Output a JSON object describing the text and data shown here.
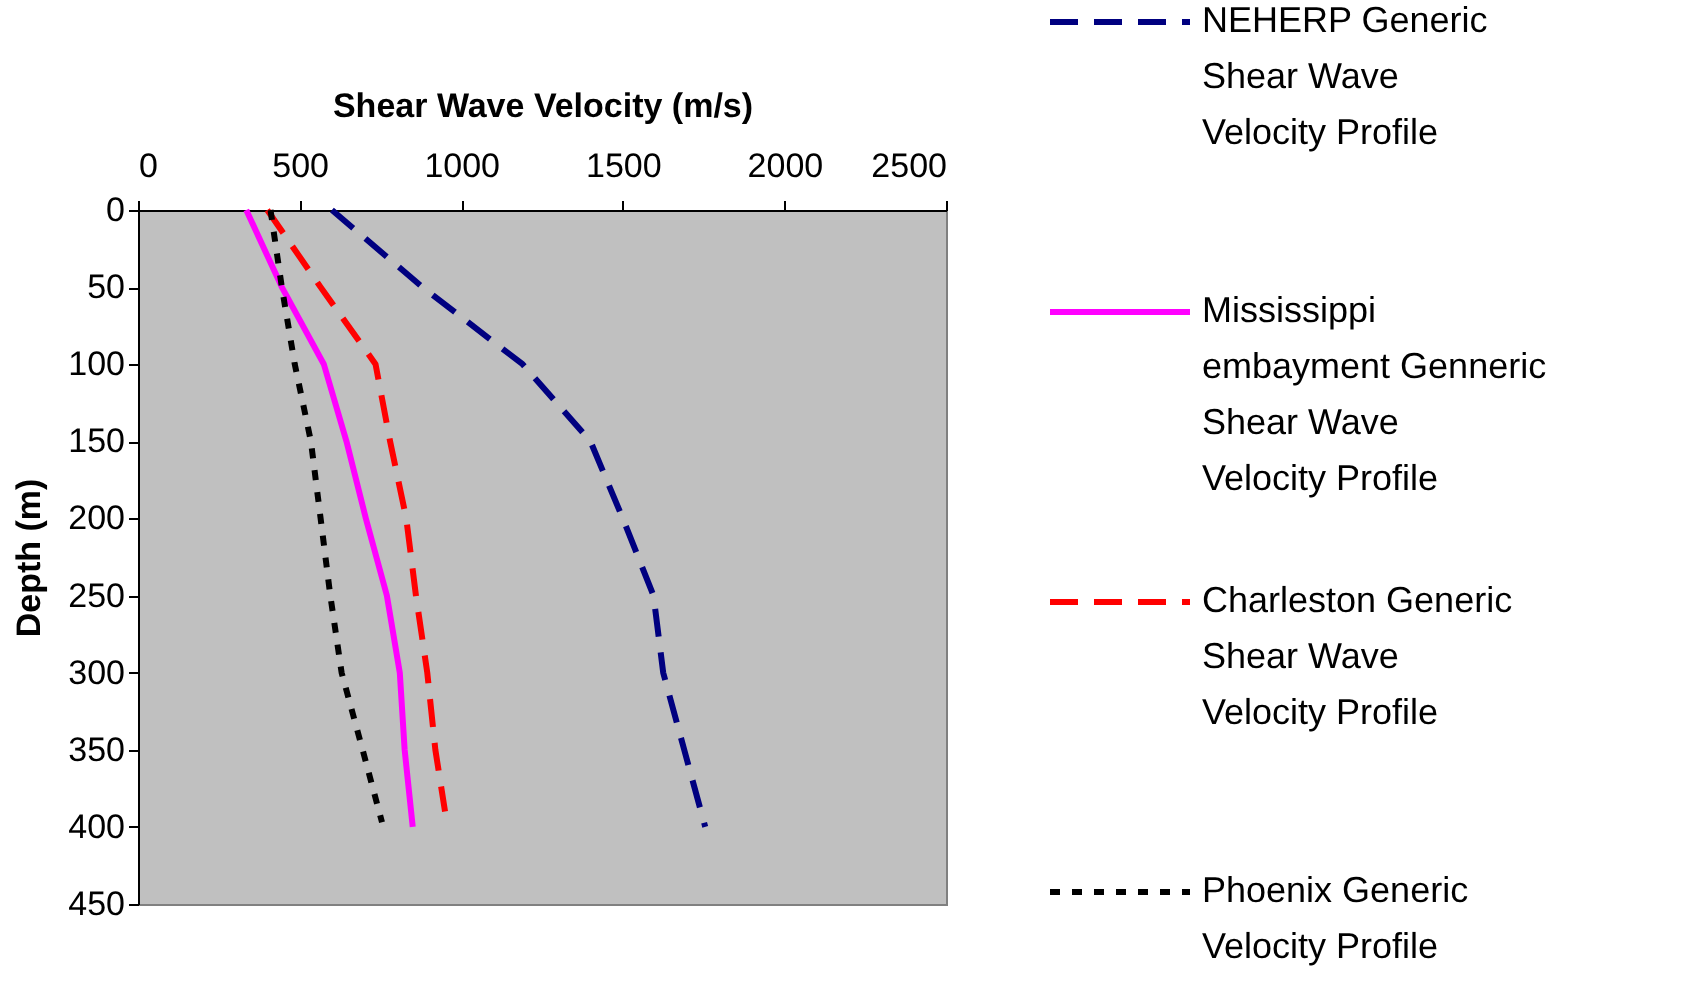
{
  "chart_data": {
    "type": "line",
    "xlabel": "Shear Wave Velocity (m/s)",
    "ylabel": "Depth (m)",
    "xlim": [
      0,
      2500
    ],
    "xticks": [
      0,
      500,
      1000,
      1500,
      2000,
      2500
    ],
    "ylim": [
      450,
      0
    ],
    "yticks": [
      0,
      50,
      100,
      150,
      200,
      250,
      300,
      350,
      400,
      450
    ],
    "grid": false,
    "legend": "right",
    "marker": "none",
    "series": [
      {
        "name": "NEHERP Generic Shear Wave Velocity Profile",
        "color": "#000080",
        "line_style": "dashed",
        "x": [
          600,
          880,
          1190,
          1400,
          1500,
          1595,
          1625,
          1690,
          1755
        ],
        "values": [
          0,
          50,
          100,
          150,
          200,
          250,
          300,
          350,
          400
        ]
      },
      {
        "name": "Mississippi embayment Genneric Shear Wave Velocity Profile",
        "color": "#ff00ff",
        "line_style": "solid",
        "x": [
          335,
          445,
          575,
          645,
          705,
          770,
          810,
          825,
          850
        ],
        "values": [
          0,
          50,
          100,
          150,
          200,
          250,
          300,
          350,
          400
        ]
      },
      {
        "name": "Charleston Generic Shear Wave Velocity Profile",
        "color": "#ff0000",
        "line_style": "dashed",
        "x": [
          400,
          565,
          735,
          780,
          830,
          860,
          895,
          920,
          950
        ],
        "values": [
          0,
          50,
          100,
          150,
          200,
          250,
          300,
          350,
          390
        ]
      },
      {
        "name": "Phoenix Generic Velocity Profile",
        "color": "#000000",
        "line_style": "dotted",
        "x": [
          410,
          445,
          485,
          535,
          565,
          595,
          630,
          695,
          755
        ],
        "values": [
          0,
          50,
          100,
          150,
          200,
          250,
          300,
          350,
          397
        ]
      }
    ]
  }
}
